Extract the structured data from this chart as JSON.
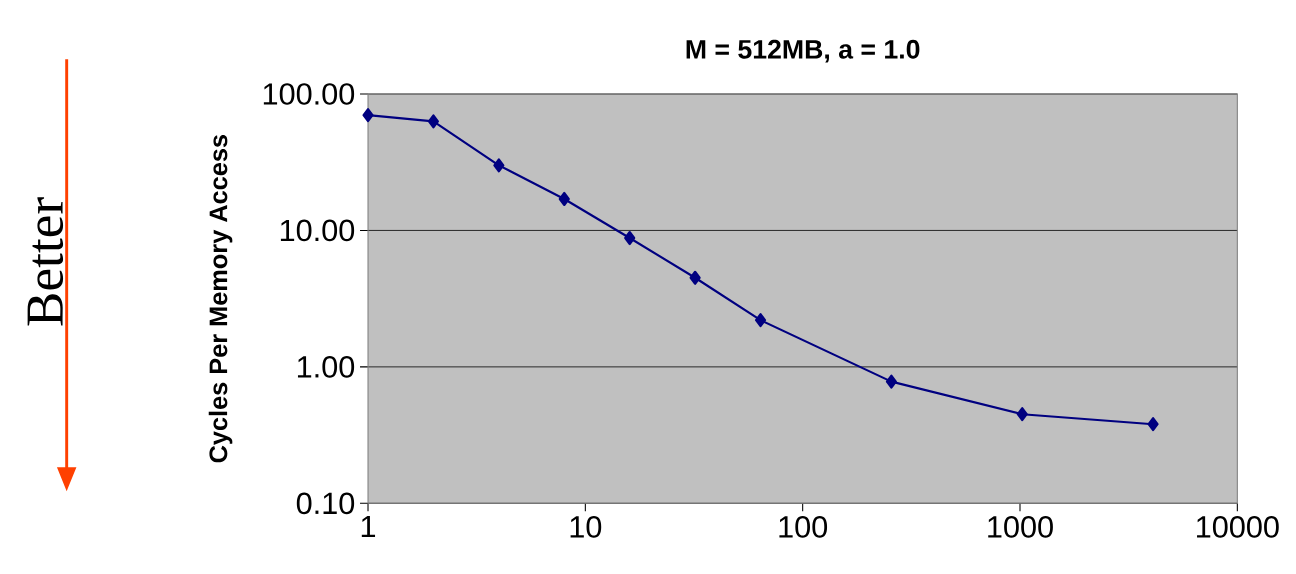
{
  "chart_data": {
    "type": "line",
    "title": "M = 512MB, a = 1.0",
    "ylabel": "Cycles Per Memory Access",
    "annotations": [
      "Better"
    ],
    "x": [
      1,
      2,
      4,
      8,
      16,
      32,
      64,
      256,
      1024,
      4096
    ],
    "series": [
      {
        "color": "#000080",
        "values": [
          70,
          63,
          30,
          17,
          8.8,
          4.5,
          2.2,
          0.78,
          0.45,
          0.38
        ]
      }
    ],
    "log": "xy",
    "xlim": [
      1,
      10000
    ],
    "ylim": [
      0.1,
      100
    ],
    "xticks": [
      1,
      10,
      100,
      1000,
      10000
    ],
    "yticks": [
      {
        "value": 0.1,
        "label": "0.10"
      },
      {
        "value": 1,
        "label": "1.00"
      },
      {
        "value": 10,
        "label": "10.00"
      },
      {
        "value": 100,
        "label": "100.00"
      }
    ],
    "grid": "y",
    "marker": "diamond",
    "line_style": "solid"
  }
}
